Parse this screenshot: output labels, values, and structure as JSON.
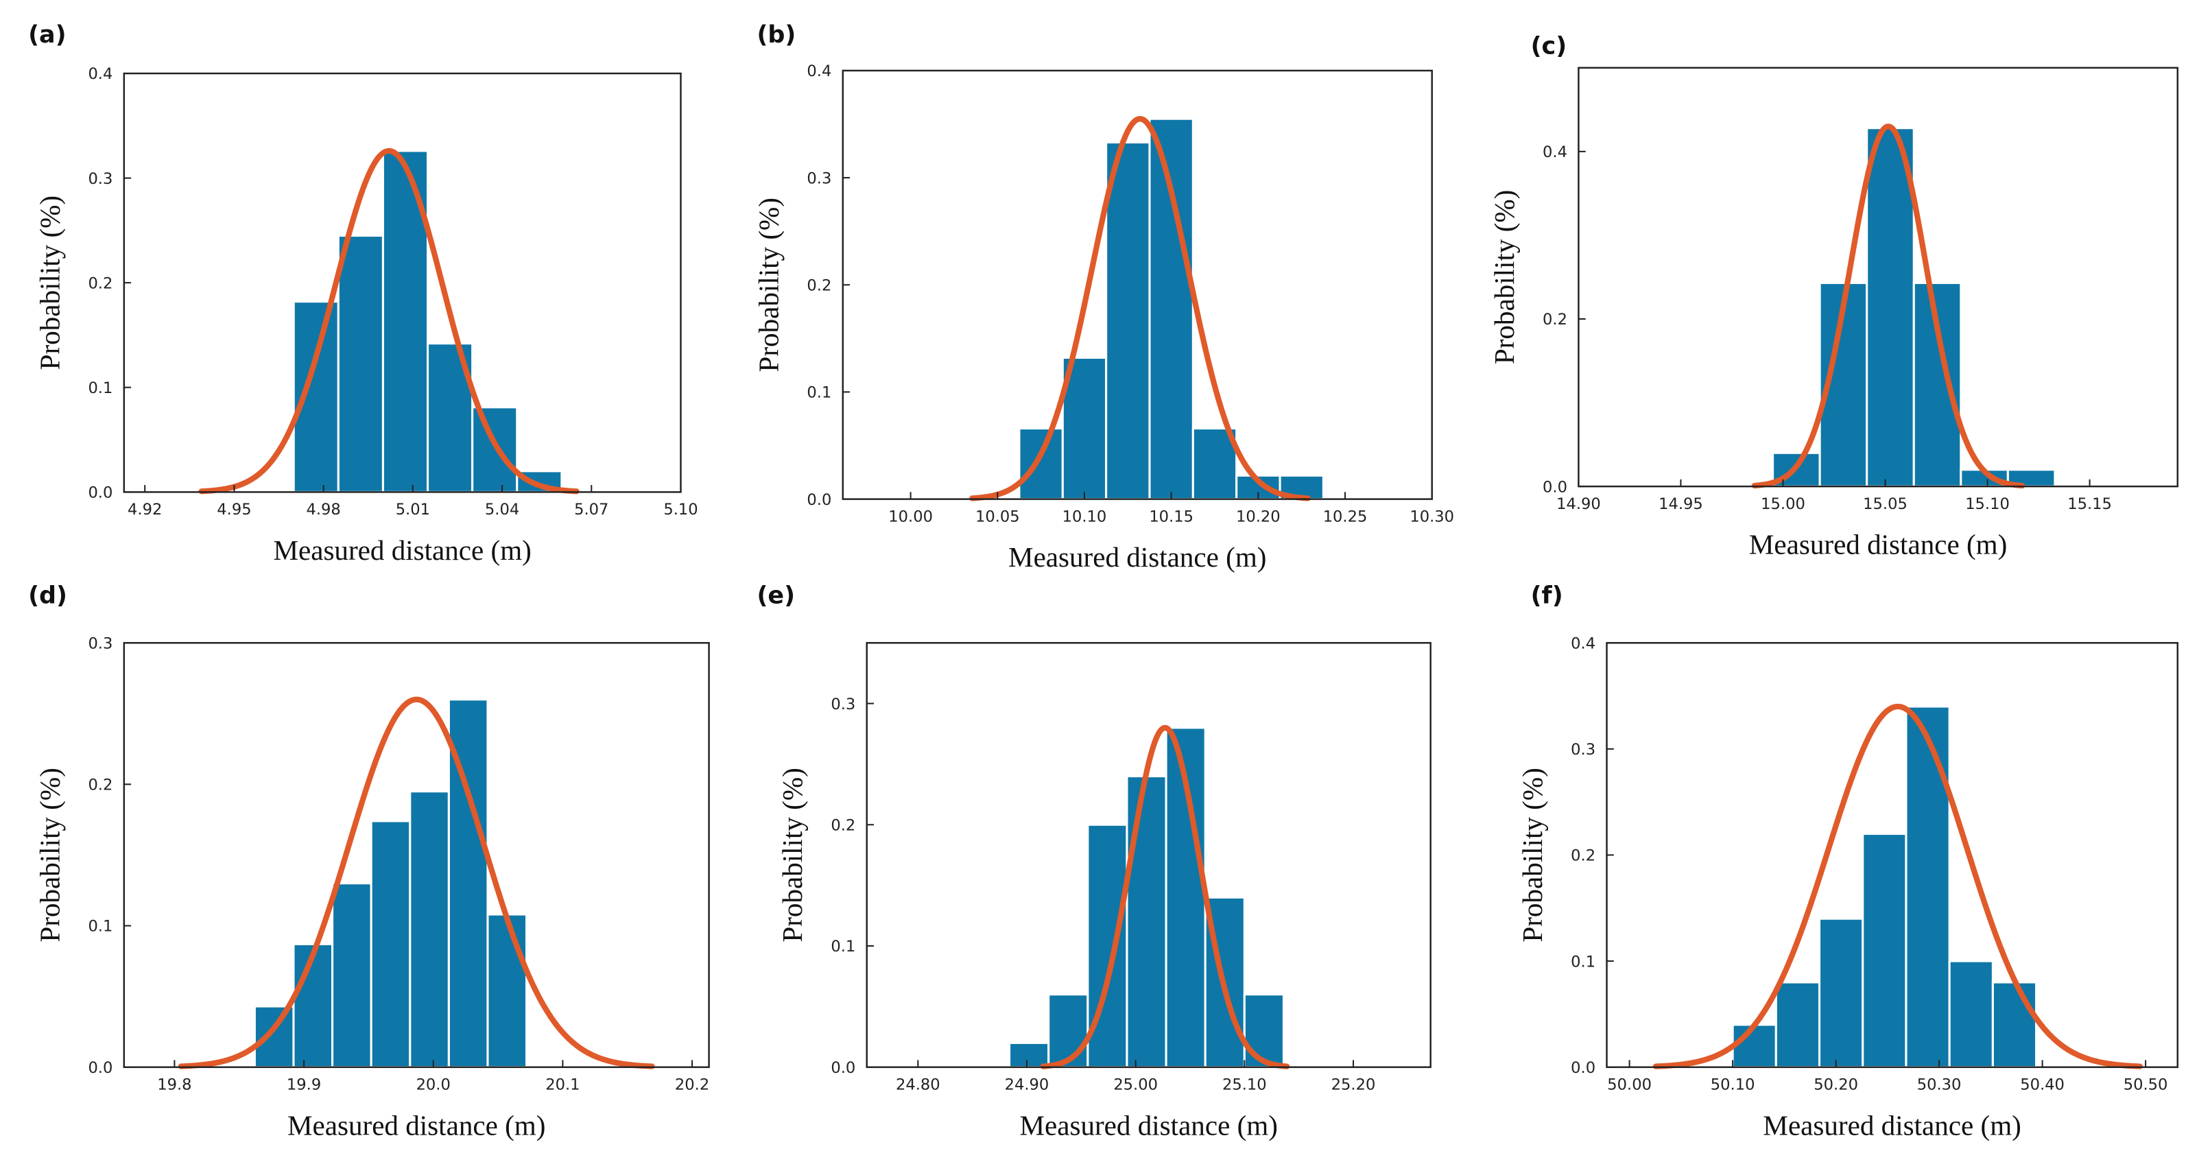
{
  "chart_data": [
    {
      "type": "histogram",
      "panel_label": "(a)",
      "xlabel": "Measured distance (m)",
      "ylabel": "Probability (%)",
      "color": "#0e77a7",
      "fit_color": "#e05a2a",
      "bins": [
        4.97,
        4.985,
        5.0,
        5.015,
        5.03,
        5.045,
        5.06
      ],
      "values": [
        0.182,
        0.245,
        0.326,
        0.142,
        0.081,
        0.02
      ],
      "fit": {
        "mu": 5.002,
        "sigma": 0.018,
        "peak": 0.326
      },
      "xlim": [
        4.913,
        5.1
      ],
      "xticks": [
        4.92,
        4.95,
        4.98,
        5.01,
        5.04,
        5.07,
        {
          "value": 5.1,
          "label": "5.10"
        }
      ],
      "ylim": [
        0,
        0.4
      ],
      "yticks": [
        {
          "value": 0,
          "label": "0.0"
        },
        0.1,
        0.2,
        0.3,
        0.4
      ]
    },
    {
      "type": "histogram",
      "panel_label": "(b)",
      "xlabel": "Measured distance (m)",
      "ylabel": "Probability (%)",
      "color": "#0e77a7",
      "fit_color": "#e05a2a",
      "bins": [
        10.0625,
        10.0875,
        10.1125,
        10.1375,
        10.1625,
        10.1875,
        10.2125,
        10.2375
      ],
      "values": [
        0.066,
        0.132,
        0.333,
        0.355,
        0.066,
        0.022,
        0.022
      ],
      "fit": {
        "mu": 10.132,
        "sigma": 0.0276,
        "peak": 0.355
      },
      "xlim": [
        9.961,
        10.3
      ],
      "xticks": [
        {
          "value": 10,
          "label": "10.00"
        },
        10.05,
        {
          "value": 10.1,
          "label": "10.10"
        },
        10.15,
        {
          "value": 10.2,
          "label": "10.20"
        },
        10.25,
        {
          "value": 10.3,
          "label": "10.30"
        }
      ],
      "ylim": [
        0,
        0.4
      ],
      "yticks": [
        {
          "value": 0,
          "label": "0.0"
        },
        0.1,
        0.2,
        0.3,
        0.4
      ]
    },
    {
      "type": "histogram",
      "panel_label": "(c)",
      "xlabel": "Measured distance (m)",
      "ylabel": "Probability (%)",
      "color": "#0e77a7",
      "fit_color": "#e05a2a",
      "bins": [
        14.995,
        15.018,
        15.041,
        15.064,
        15.087,
        15.11,
        15.133
      ],
      "values": [
        0.04,
        0.243,
        0.428,
        0.243,
        0.02,
        0.02
      ],
      "fit": {
        "mu": 15.0515,
        "sigma": 0.0187,
        "peak": 0.43
      },
      "xlim": [
        14.9,
        15.193
      ],
      "xticks": [
        {
          "value": 14.9,
          "label": "14.90"
        },
        14.95,
        {
          "value": 15,
          "label": "15.00"
        },
        15.05,
        {
          "value": 15.1,
          "label": "15.10"
        },
        15.15
      ],
      "ylim": [
        0,
        0.5
      ],
      "yticks": [
        {
          "value": 0,
          "label": "0.0"
        },
        0.2,
        0.4
      ]
    },
    {
      "type": "histogram",
      "panel_label": "(d)",
      "xlabel": "Measured distance (m)",
      "ylabel": "Probability (%)",
      "color": "#0e77a7",
      "fit_color": "#e05a2a",
      "bins": [
        19.862,
        19.892,
        19.922,
        19.952,
        19.982,
        20.012,
        20.042,
        20.072
      ],
      "values": [
        0.043,
        0.087,
        0.13,
        0.174,
        0.195,
        0.26,
        0.108
      ],
      "fit": {
        "mu": 19.987,
        "sigma": 0.052,
        "peak": 0.26
      },
      "xlim": [
        19.761,
        20.213
      ],
      "xticks": [
        19.8,
        19.9,
        {
          "value": 20,
          "label": "20.0"
        },
        20.1,
        20.2
      ],
      "ylim": [
        0,
        0.3
      ],
      "yticks": [
        {
          "value": 0,
          "label": "0.0"
        },
        0.1,
        0.2,
        0.3
      ]
    },
    {
      "type": "histogram",
      "panel_label": "(e)",
      "xlabel": "Measured distance (m)",
      "ylabel": "Probability (%)",
      "color": "#0e77a7",
      "fit_color": "#e05a2a",
      "bins": [
        24.884,
        24.92,
        24.956,
        24.992,
        25.028,
        25.064,
        25.1,
        25.136
      ],
      "values": [
        0.02,
        0.06,
        0.2,
        0.24,
        0.28,
        0.14,
        0.06
      ],
      "fit": {
        "mu": 25.027,
        "sigma": 0.032,
        "peak": 0.28
      },
      "xlim": [
        24.753,
        25.271
      ],
      "xticks": [
        {
          "value": 24.8,
          "label": "24.80"
        },
        {
          "value": 24.9,
          "label": "24.90"
        },
        {
          "value": 25,
          "label": "25.00"
        },
        {
          "value": 25.1,
          "label": "25.10"
        },
        {
          "value": 25.2,
          "label": "25.20"
        }
      ],
      "ylim": [
        0,
        0.35
      ],
      "yticks": [
        {
          "value": 0,
          "label": "0.0"
        },
        0.1,
        0.2,
        0.3
      ]
    },
    {
      "type": "histogram",
      "panel_label": "(f)",
      "xlabel": "Measured distance (m)",
      "ylabel": "Probability (%)",
      "color": "#0e77a7",
      "fit_color": "#e05a2a",
      "bins": [
        50.1,
        50.142,
        50.184,
        50.226,
        50.268,
        50.31,
        50.352,
        50.394
      ],
      "values": [
        0.04,
        0.08,
        0.14,
        0.22,
        0.34,
        0.1,
        0.08
      ],
      "fit": {
        "mu": 50.26,
        "sigma": 0.067,
        "peak": 0.34
      },
      "xlim": [
        49.978,
        50.531
      ],
      "xticks": [
        {
          "value": 50,
          "label": "50.00"
        },
        {
          "value": 50.1,
          "label": "50.10"
        },
        {
          "value": 50.2,
          "label": "50.20"
        },
        {
          "value": 50.3,
          "label": "50.30"
        },
        {
          "value": 50.4,
          "label": "50.40"
        },
        {
          "value": 50.5,
          "label": "50.50"
        }
      ],
      "ylim": [
        0,
        0.4
      ],
      "yticks": [
        {
          "value": 0,
          "label": "0.0"
        },
        0.1,
        0.2,
        0.3,
        0.4
      ]
    }
  ]
}
